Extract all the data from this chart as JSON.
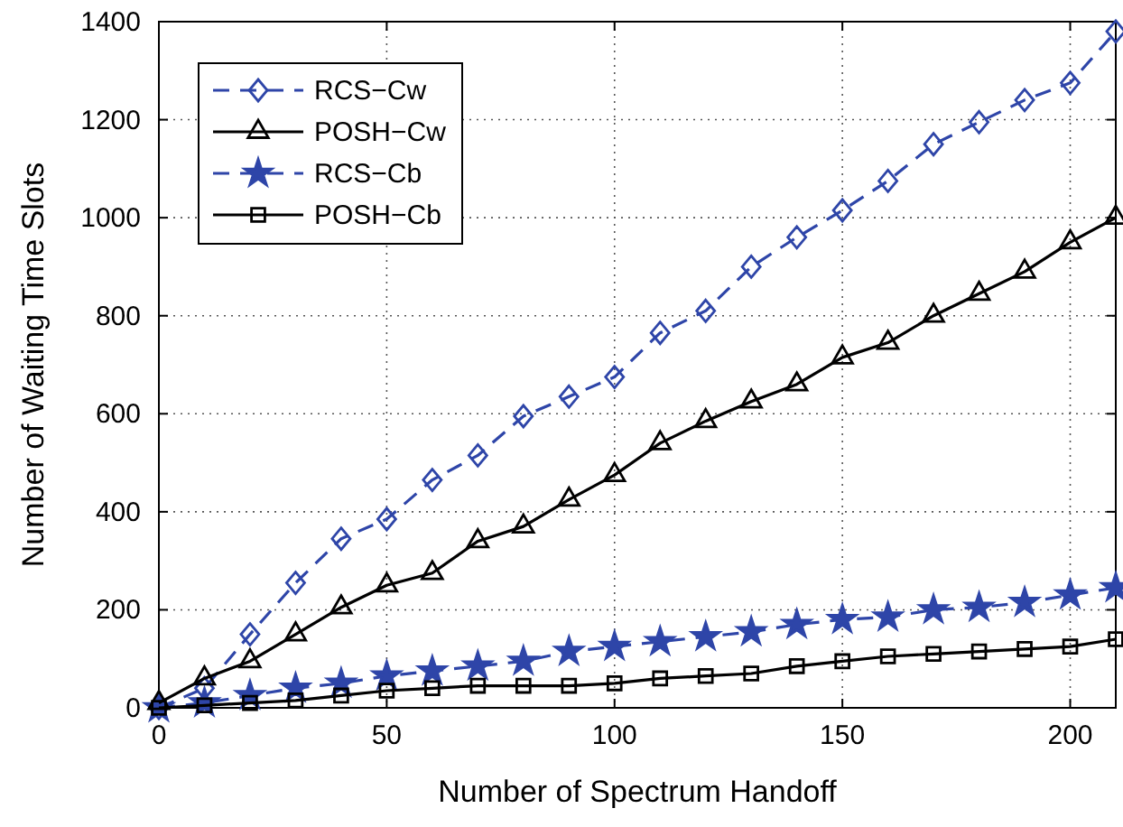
{
  "chart_data": {
    "type": "line",
    "xlabel": "Number of Spectrum Handoff",
    "ylabel": "Number of Waiting Time Slots",
    "x": [
      0,
      10,
      20,
      30,
      40,
      50,
      60,
      70,
      80,
      90,
      100,
      110,
      120,
      130,
      140,
      150,
      160,
      170,
      180,
      190,
      200,
      210
    ],
    "xlim": [
      0,
      210
    ],
    "xticks": [
      0,
      50,
      100,
      150,
      200
    ],
    "ylim": [
      0,
      1400
    ],
    "yticks": [
      0,
      200,
      400,
      600,
      800,
      1000,
      1200,
      1400
    ],
    "grid": true,
    "legend": "top left",
    "series": [
      {
        "name": "RCS−Cw",
        "color": "#2e45a8",
        "marker": "diamond",
        "line_style": "dashed",
        "values": [
          0,
          40,
          150,
          255,
          345,
          385,
          465,
          515,
          595,
          635,
          675,
          765,
          810,
          900,
          960,
          1015,
          1075,
          1150,
          1195,
          1240,
          1275,
          1380
        ]
      },
      {
        "name": "POSH−Cw",
        "color": "#000000",
        "marker": "triangle",
        "line_style": "solid",
        "values": [
          10,
          60,
          95,
          150,
          205,
          250,
          275,
          340,
          370,
          425,
          475,
          540,
          585,
          625,
          660,
          715,
          745,
          800,
          845,
          890,
          950,
          1000
        ]
      },
      {
        "name": "RCS−Cb",
        "color": "#2e45a8",
        "marker": "star",
        "line_style": "dashed",
        "values": [
          0,
          10,
          25,
          40,
          50,
          65,
          75,
          85,
          95,
          115,
          125,
          135,
          145,
          155,
          170,
          180,
          185,
          200,
          205,
          215,
          230,
          245
        ]
      },
      {
        "name": "POSH−Cb",
        "color": "#000000",
        "marker": "square",
        "line_style": "solid",
        "values": [
          0,
          5,
          10,
          15,
          25,
          35,
          40,
          45,
          45,
          45,
          50,
          60,
          65,
          70,
          85,
          95,
          105,
          110,
          115,
          120,
          125,
          140
        ]
      }
    ]
  }
}
